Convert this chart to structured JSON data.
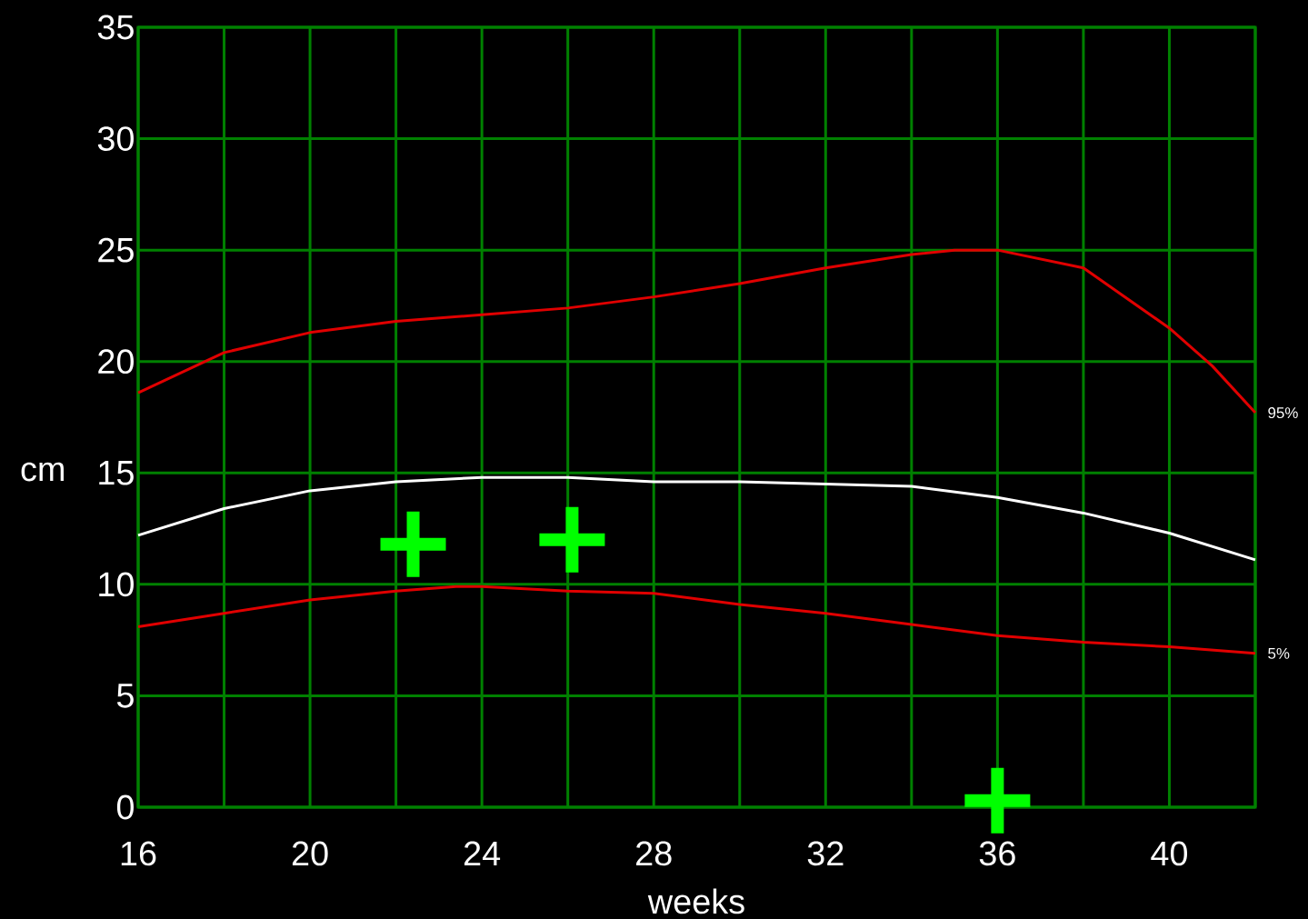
{
  "chart_data": {
    "type": "line",
    "xlabel": "weeks",
    "ylabel": "cm",
    "xlim": [
      16,
      42
    ],
    "ylim": [
      0,
      35
    ],
    "xticks": [
      16,
      {
        "value": 18,
        "label": null
      },
      20,
      {
        "value": 22,
        "label": null
      },
      24,
      {
        "value": 26,
        "label": null
      },
      28,
      {
        "value": 30,
        "label": null
      },
      32,
      {
        "value": 34,
        "label": null
      },
      36,
      {
        "value": 38,
        "label": null
      },
      40,
      {
        "value": 42,
        "label": null
      }
    ],
    "yticks": [
      0,
      5,
      10,
      15,
      20,
      25,
      30,
      35
    ],
    "grid": true,
    "series": [
      {
        "name": "95%",
        "color": "#e00000",
        "x": [
          16,
          18,
          20,
          22,
          24,
          26,
          28,
          30,
          32,
          34,
          35,
          36,
          38,
          40,
          41,
          42
        ],
        "values": [
          18.6,
          20.4,
          21.3,
          21.8,
          22.1,
          22.4,
          22.9,
          23.5,
          24.2,
          24.8,
          25.0,
          25.0,
          24.2,
          21.5,
          19.8,
          17.7
        ]
      },
      {
        "color": "#ffffff",
        "x": [
          16,
          18,
          20,
          22,
          24,
          26,
          28,
          30,
          32,
          34,
          36,
          38,
          40,
          42
        ],
        "values": [
          12.2,
          13.4,
          14.2,
          14.6,
          14.8,
          14.8,
          14.6,
          14.6,
          14.5,
          14.4,
          13.9,
          13.2,
          12.3,
          11.1
        ]
      },
      {
        "name": "5%",
        "color": "#e00000",
        "x": [
          16,
          18,
          20,
          22,
          23.4,
          24,
          26,
          28,
          30,
          32,
          34,
          36,
          38,
          40,
          42
        ],
        "values": [
          8.1,
          8.7,
          9.3,
          9.7,
          9.9,
          9.9,
          9.7,
          9.6,
          9.1,
          8.7,
          8.2,
          7.7,
          7.4,
          7.2,
          6.9
        ]
      },
      {
        "type": "scatter",
        "marker": "cross",
        "color": "#00ff00",
        "x": [
          22.4,
          26.1,
          36
        ],
        "values": [
          11.8,
          12.0,
          0.3
        ]
      }
    ]
  }
}
